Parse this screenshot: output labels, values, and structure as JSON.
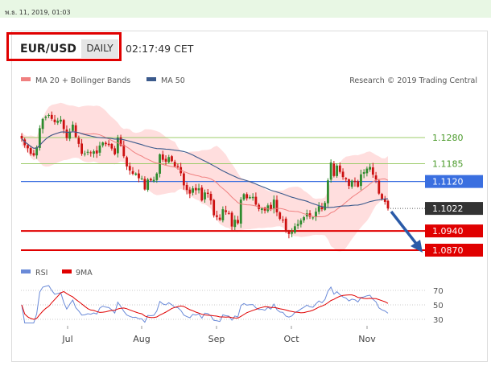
{
  "header": {
    "datetime": "พ.ธ. 11, 2019, 01:03",
    "symbol": "EUR/USD",
    "timeframe": "DAILY",
    "clock": "02:17:49 CET"
  },
  "legend": {
    "bollinger": "MA 20 + Bollinger Bands",
    "ma50": "MA 50",
    "credit": "Research © 2019 Trading Central",
    "rsi": "RSI",
    "rsi_ma": "9MA"
  },
  "colors": {
    "up": "#2e8b2e",
    "down": "#cc1111",
    "bollinger_fill": "#ffdede",
    "ma20": "#f08080",
    "ma50": "#3b5a8c",
    "resistance": "#9ccc6a",
    "pivot": "#3a6fe0",
    "support": "#e00000",
    "last_price": "#333333",
    "rsi": "#6a8ad8",
    "rsi_ma": "#e00000",
    "arrow": "#2a5aa8"
  },
  "chart_data": {
    "type": "candlestick",
    "x_axis": {
      "ticks": [
        "Jul",
        "Aug",
        "Sep",
        "Oct",
        "Nov"
      ]
    },
    "y_range": [
      1.085,
      1.142
    ],
    "levels": [
      {
        "label": "1.1280",
        "value": 1.128,
        "kind": "resistance"
      },
      {
        "label": "1.1185",
        "value": 1.1185,
        "kind": "resistance"
      },
      {
        "label": "1.1120",
        "value": 1.112,
        "kind": "pivot"
      },
      {
        "label": "1.1022",
        "value": 1.1022,
        "kind": "last"
      },
      {
        "label": "1.0940",
        "value": 1.094,
        "kind": "support"
      },
      {
        "label": "1.0870",
        "value": 1.087,
        "kind": "support"
      }
    ],
    "series": [
      {
        "name": "MA 20 + Bollinger Bands",
        "type": "bollinger"
      },
      {
        "name": "MA 50",
        "type": "line"
      }
    ],
    "closes": [
      1.1276,
      1.1252,
      1.1241,
      1.1221,
      1.1215,
      1.1245,
      1.1314,
      1.1348,
      1.1356,
      1.1362,
      1.1348,
      1.1336,
      1.1341,
      1.1345,
      1.1311,
      1.1278,
      1.1302,
      1.1327,
      1.1282,
      1.1257,
      1.1221,
      1.1222,
      1.1228,
      1.1224,
      1.123,
      1.1222,
      1.1251,
      1.1262,
      1.1256,
      1.1253,
      1.124,
      1.1219,
      1.128,
      1.1251,
      1.1212,
      1.1175,
      1.116,
      1.1148,
      1.1149,
      1.1132,
      1.1131,
      1.1091,
      1.1127,
      1.1124,
      1.1126,
      1.1149,
      1.1219,
      1.1199,
      1.1192,
      1.1209,
      1.1194,
      1.1175,
      1.1172,
      1.115,
      1.1106,
      1.1089,
      1.1076,
      1.1095,
      1.1088,
      1.1095,
      1.1051,
      1.108,
      1.1075,
      1.1051,
      1.0997,
      1.0991,
      1.0981,
      1.1019,
      1.1009,
      1.1005,
      1.0956,
      1.0981,
      1.0968,
      1.1054,
      1.1074,
      1.1059,
      1.1063,
      1.1064,
      1.1036,
      1.102,
      1.1022,
      1.1014,
      1.1033,
      1.1019,
      1.1054,
      1.1008,
      1.0984,
      1.0981,
      1.094,
      1.0929,
      1.0936,
      1.0957,
      1.0965,
      1.0978,
      1.099,
      1.1004,
      1.0992,
      1.0989,
      1.101,
      1.103,
      1.1019,
      1.1042,
      1.1124,
      1.1189,
      1.114,
      1.1178,
      1.1155,
      1.1136,
      1.1128,
      1.1104,
      1.1123,
      1.1118,
      1.1101,
      1.1146,
      1.1154,
      1.1167,
      1.1173,
      1.1145,
      1.1127,
      1.1076,
      1.1057,
      1.1046,
      1.1022
    ],
    "rsi_range": [
      20,
      80
    ],
    "rsi_ticks": [
      70,
      50,
      30
    ]
  }
}
